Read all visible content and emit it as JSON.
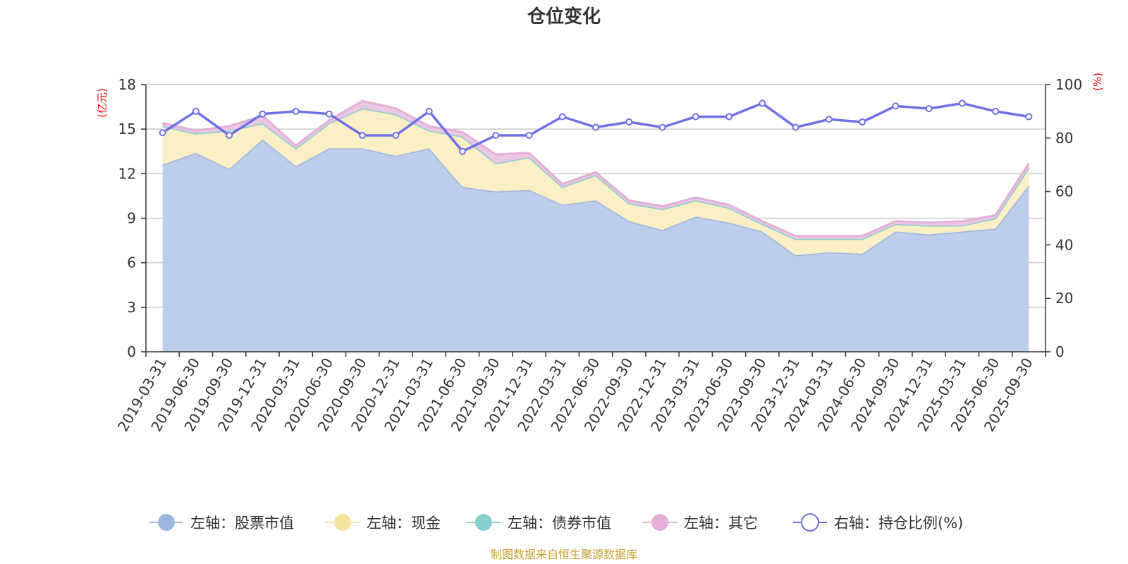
{
  "chart_data": {
    "type": "area",
    "title": "仓位变化",
    "left_axis_unit": "(亿元)",
    "right_axis_unit": "(%)",
    "left_ticks": [
      "0",
      "3",
      "6",
      "9",
      "12",
      "15",
      "18"
    ],
    "right_ticks": [
      "0",
      "20",
      "40",
      "60",
      "80",
      "100"
    ],
    "left_ylim": [
      0,
      18
    ],
    "right_ylim": [
      0,
      100
    ],
    "categories": [
      "2019-03-31",
      "2019-06-30",
      "2019-09-30",
      "2019-12-31",
      "2020-03-31",
      "2020-06-30",
      "2020-09-30",
      "2020-12-31",
      "2021-03-31",
      "2021-06-30",
      "2021-09-30",
      "2021-12-31",
      "2022-03-31",
      "2022-06-30",
      "2022-09-30",
      "2022-12-31",
      "2023-03-31",
      "2023-06-30",
      "2023-09-30",
      "2023-12-31",
      "2024-03-31",
      "2024-06-30",
      "2024-09-30",
      "2024-12-31",
      "2025-03-31",
      "2025-06-30",
      "2025-09-30"
    ],
    "series": [
      {
        "name": "左轴：股票市值",
        "axis": "left",
        "kind": "stacked-area",
        "color": "#9cb6e0",
        "fill": "#b8cbea",
        "values": [
          12.6,
          13.4,
          12.3,
          14.3,
          12.5,
          13.7,
          13.7,
          13.2,
          13.7,
          11.1,
          10.8,
          10.9,
          9.9,
          10.2,
          8.8,
          8.2,
          9.1,
          8.7,
          8.1,
          6.5,
          6.7,
          6.6,
          8.1,
          7.9,
          8.1,
          8.3,
          11.2
        ]
      },
      {
        "name": "左轴：现金",
        "axis": "left",
        "kind": "stacked-area",
        "color": "#f4e4a0",
        "fill": "#faeec2",
        "values": [
          2.6,
          1.3,
          2.6,
          1.1,
          1.2,
          1.7,
          2.7,
          2.8,
          1.2,
          3.4,
          1.9,
          2.2,
          1.2,
          1.7,
          1.2,
          1.4,
          1.1,
          1.0,
          0.5,
          1.1,
          0.9,
          1.0,
          0.5,
          0.6,
          0.4,
          0.7,
          1.2
        ]
      },
      {
        "name": "左轴：债券市值",
        "axis": "left",
        "kind": "stacked-area",
        "color": "#88d0d0",
        "fill": "#a8dcdc",
        "values": [
          0,
          0,
          0,
          0,
          0,
          0,
          0,
          0,
          0,
          0,
          0,
          0,
          0,
          0,
          0,
          0,
          0,
          0,
          0,
          0,
          0,
          0,
          0,
          0,
          0,
          0,
          0
        ]
      },
      {
        "name": "左轴：其它",
        "axis": "left",
        "kind": "stacked-area",
        "color": "#e4b0d8",
        "fill": "#ecc4e2",
        "values": [
          0.2,
          0.2,
          0.3,
          0.5,
          0.2,
          0.2,
          0.5,
          0.4,
          0.3,
          0.3,
          0.6,
          0.3,
          0.2,
          0.2,
          0.2,
          0.2,
          0.2,
          0.2,
          0.2,
          0.2,
          0.2,
          0.2,
          0.2,
          0.2,
          0.3,
          0.2,
          0.3
        ]
      },
      {
        "name": "右轴：持仓比例(%)",
        "axis": "right",
        "kind": "line",
        "color": "#7070e8",
        "values": [
          82,
          90,
          81,
          89,
          90,
          89,
          81,
          81,
          90,
          75,
          81,
          81,
          88,
          84,
          86,
          84,
          88,
          88,
          93,
          84,
          87,
          86,
          92,
          91,
          93,
          90,
          88
        ]
      }
    ]
  },
  "source_note": "制图数据来自恒生聚源数据库"
}
